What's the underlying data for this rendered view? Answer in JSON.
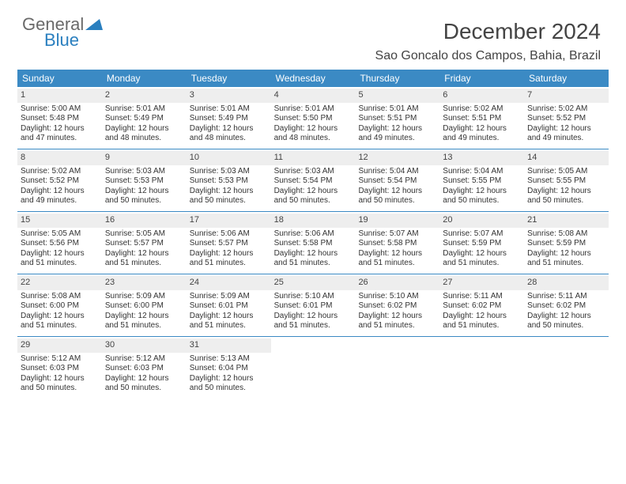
{
  "brand": {
    "part1": "General",
    "part2": "Blue"
  },
  "title": "December 2024",
  "location": "Sao Goncalo dos Campos, Bahia, Brazil",
  "style": {
    "header_bg": "#3b8ac4",
    "header_fg": "#ffffff",
    "daynum_bg": "#eeeeee",
    "divider": "#3b8ac4",
    "page_bg": "#ffffff",
    "text": "#333333",
    "title_fontsize": 28,
    "location_fontsize": 16,
    "dayhdr_fontsize": 12,
    "cell_fontsize": 10
  },
  "day_headers": [
    "Sunday",
    "Monday",
    "Tuesday",
    "Wednesday",
    "Thursday",
    "Friday",
    "Saturday"
  ],
  "weeks": [
    [
      {
        "num": "1",
        "sunrise": "Sunrise: 5:00 AM",
        "sunset": "Sunset: 5:48 PM",
        "dl1": "Daylight: 12 hours",
        "dl2": "and 47 minutes."
      },
      {
        "num": "2",
        "sunrise": "Sunrise: 5:01 AM",
        "sunset": "Sunset: 5:49 PM",
        "dl1": "Daylight: 12 hours",
        "dl2": "and 48 minutes."
      },
      {
        "num": "3",
        "sunrise": "Sunrise: 5:01 AM",
        "sunset": "Sunset: 5:49 PM",
        "dl1": "Daylight: 12 hours",
        "dl2": "and 48 minutes."
      },
      {
        "num": "4",
        "sunrise": "Sunrise: 5:01 AM",
        "sunset": "Sunset: 5:50 PM",
        "dl1": "Daylight: 12 hours",
        "dl2": "and 48 minutes."
      },
      {
        "num": "5",
        "sunrise": "Sunrise: 5:01 AM",
        "sunset": "Sunset: 5:51 PM",
        "dl1": "Daylight: 12 hours",
        "dl2": "and 49 minutes."
      },
      {
        "num": "6",
        "sunrise": "Sunrise: 5:02 AM",
        "sunset": "Sunset: 5:51 PM",
        "dl1": "Daylight: 12 hours",
        "dl2": "and 49 minutes."
      },
      {
        "num": "7",
        "sunrise": "Sunrise: 5:02 AM",
        "sunset": "Sunset: 5:52 PM",
        "dl1": "Daylight: 12 hours",
        "dl2": "and 49 minutes."
      }
    ],
    [
      {
        "num": "8",
        "sunrise": "Sunrise: 5:02 AM",
        "sunset": "Sunset: 5:52 PM",
        "dl1": "Daylight: 12 hours",
        "dl2": "and 49 minutes."
      },
      {
        "num": "9",
        "sunrise": "Sunrise: 5:03 AM",
        "sunset": "Sunset: 5:53 PM",
        "dl1": "Daylight: 12 hours",
        "dl2": "and 50 minutes."
      },
      {
        "num": "10",
        "sunrise": "Sunrise: 5:03 AM",
        "sunset": "Sunset: 5:53 PM",
        "dl1": "Daylight: 12 hours",
        "dl2": "and 50 minutes."
      },
      {
        "num": "11",
        "sunrise": "Sunrise: 5:03 AM",
        "sunset": "Sunset: 5:54 PM",
        "dl1": "Daylight: 12 hours",
        "dl2": "and 50 minutes."
      },
      {
        "num": "12",
        "sunrise": "Sunrise: 5:04 AM",
        "sunset": "Sunset: 5:54 PM",
        "dl1": "Daylight: 12 hours",
        "dl2": "and 50 minutes."
      },
      {
        "num": "13",
        "sunrise": "Sunrise: 5:04 AM",
        "sunset": "Sunset: 5:55 PM",
        "dl1": "Daylight: 12 hours",
        "dl2": "and 50 minutes."
      },
      {
        "num": "14",
        "sunrise": "Sunrise: 5:05 AM",
        "sunset": "Sunset: 5:55 PM",
        "dl1": "Daylight: 12 hours",
        "dl2": "and 50 minutes."
      }
    ],
    [
      {
        "num": "15",
        "sunrise": "Sunrise: 5:05 AM",
        "sunset": "Sunset: 5:56 PM",
        "dl1": "Daylight: 12 hours",
        "dl2": "and 51 minutes."
      },
      {
        "num": "16",
        "sunrise": "Sunrise: 5:05 AM",
        "sunset": "Sunset: 5:57 PM",
        "dl1": "Daylight: 12 hours",
        "dl2": "and 51 minutes."
      },
      {
        "num": "17",
        "sunrise": "Sunrise: 5:06 AM",
        "sunset": "Sunset: 5:57 PM",
        "dl1": "Daylight: 12 hours",
        "dl2": "and 51 minutes."
      },
      {
        "num": "18",
        "sunrise": "Sunrise: 5:06 AM",
        "sunset": "Sunset: 5:58 PM",
        "dl1": "Daylight: 12 hours",
        "dl2": "and 51 minutes."
      },
      {
        "num": "19",
        "sunrise": "Sunrise: 5:07 AM",
        "sunset": "Sunset: 5:58 PM",
        "dl1": "Daylight: 12 hours",
        "dl2": "and 51 minutes."
      },
      {
        "num": "20",
        "sunrise": "Sunrise: 5:07 AM",
        "sunset": "Sunset: 5:59 PM",
        "dl1": "Daylight: 12 hours",
        "dl2": "and 51 minutes."
      },
      {
        "num": "21",
        "sunrise": "Sunrise: 5:08 AM",
        "sunset": "Sunset: 5:59 PM",
        "dl1": "Daylight: 12 hours",
        "dl2": "and 51 minutes."
      }
    ],
    [
      {
        "num": "22",
        "sunrise": "Sunrise: 5:08 AM",
        "sunset": "Sunset: 6:00 PM",
        "dl1": "Daylight: 12 hours",
        "dl2": "and 51 minutes."
      },
      {
        "num": "23",
        "sunrise": "Sunrise: 5:09 AM",
        "sunset": "Sunset: 6:00 PM",
        "dl1": "Daylight: 12 hours",
        "dl2": "and 51 minutes."
      },
      {
        "num": "24",
        "sunrise": "Sunrise: 5:09 AM",
        "sunset": "Sunset: 6:01 PM",
        "dl1": "Daylight: 12 hours",
        "dl2": "and 51 minutes."
      },
      {
        "num": "25",
        "sunrise": "Sunrise: 5:10 AM",
        "sunset": "Sunset: 6:01 PM",
        "dl1": "Daylight: 12 hours",
        "dl2": "and 51 minutes."
      },
      {
        "num": "26",
        "sunrise": "Sunrise: 5:10 AM",
        "sunset": "Sunset: 6:02 PM",
        "dl1": "Daylight: 12 hours",
        "dl2": "and 51 minutes."
      },
      {
        "num": "27",
        "sunrise": "Sunrise: 5:11 AM",
        "sunset": "Sunset: 6:02 PM",
        "dl1": "Daylight: 12 hours",
        "dl2": "and 51 minutes."
      },
      {
        "num": "28",
        "sunrise": "Sunrise: 5:11 AM",
        "sunset": "Sunset: 6:02 PM",
        "dl1": "Daylight: 12 hours",
        "dl2": "and 50 minutes."
      }
    ],
    [
      {
        "num": "29",
        "sunrise": "Sunrise: 5:12 AM",
        "sunset": "Sunset: 6:03 PM",
        "dl1": "Daylight: 12 hours",
        "dl2": "and 50 minutes."
      },
      {
        "num": "30",
        "sunrise": "Sunrise: 5:12 AM",
        "sunset": "Sunset: 6:03 PM",
        "dl1": "Daylight: 12 hours",
        "dl2": "and 50 minutes."
      },
      {
        "num": "31",
        "sunrise": "Sunrise: 5:13 AM",
        "sunset": "Sunset: 6:04 PM",
        "dl1": "Daylight: 12 hours",
        "dl2": "and 50 minutes."
      },
      {
        "empty": true
      },
      {
        "empty": true
      },
      {
        "empty": true
      },
      {
        "empty": true
      }
    ]
  ]
}
